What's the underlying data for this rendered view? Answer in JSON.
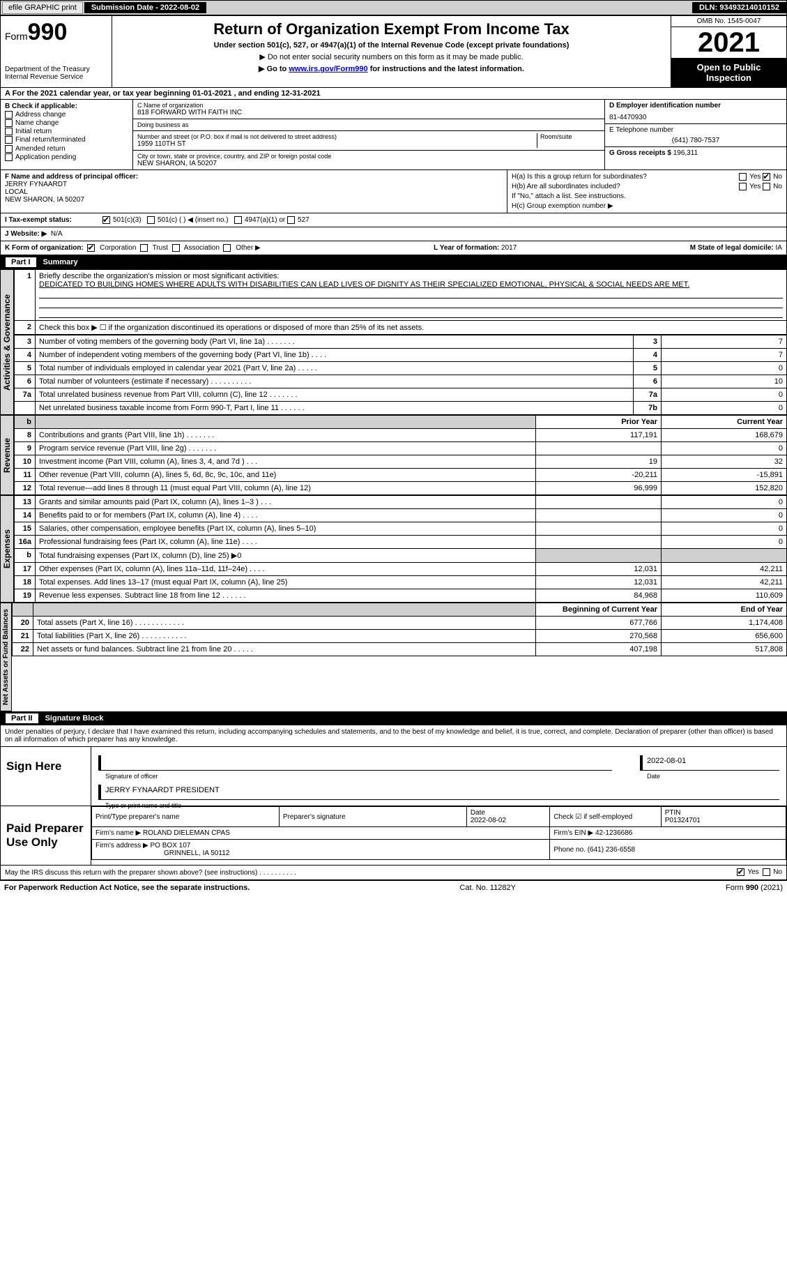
{
  "topbar": {
    "efile": "efile GRAPHIC print",
    "subdate_label": "Submission Date - ",
    "subdate": "2022-08-02",
    "dln_label": "DLN: ",
    "dln": "93493214010152"
  },
  "header": {
    "form_label": "Form",
    "form_num": "990",
    "dept": "Department of the Treasury",
    "irs": "Internal Revenue Service",
    "title": "Return of Organization Exempt From Income Tax",
    "sub1": "Under section 501(c), 527, or 4947(a)(1) of the Internal Revenue Code (except private foundations)",
    "sub2": "▶ Do not enter social security numbers on this form as it may be made public.",
    "sub3_a": "▶ Go to ",
    "sub3_link": "www.irs.gov/Form990",
    "sub3_b": " for instructions and the latest information.",
    "omb": "OMB No. 1545-0047",
    "year": "2021",
    "openpub": "Open to Public Inspection"
  },
  "rowA": "A  For the 2021 calendar year, or tax year beginning 01-01-2021    , and ending 12-31-2021",
  "colB": {
    "label": "B Check if applicable:",
    "opts": [
      "Address change",
      "Name change",
      "Initial return",
      "Final return/terminated",
      "Amended return",
      "Application pending"
    ]
  },
  "colC": {
    "name_lbl": "C Name of organization",
    "name": "818 FORWARD WITH FAITH INC",
    "dba_lbl": "Doing business as",
    "dba": "",
    "street_lbl": "Number and street (or P.O. box if mail is not delivered to street address)",
    "room_lbl": "Room/suite",
    "street": "1959 110TH ST",
    "city_lbl": "City or town, state or province, country, and ZIP or foreign postal code",
    "city": "NEW SHARON, IA  50207"
  },
  "colD": {
    "ein_lbl": "D Employer identification number",
    "ein": "81-4470930",
    "tel_lbl": "E Telephone number",
    "tel": "(641) 780-7537",
    "gross_lbl": "G Gross receipts $ ",
    "gross": "196,311"
  },
  "rowF": {
    "lbl": "F Name and address of principal officer:",
    "name": "JERRY FYNAARDT",
    "addr1": "LOCAL",
    "addr2": "NEW SHARON, IA  50207"
  },
  "rowH": {
    "ha": "H(a)  Is this a group return for subordinates?",
    "hb": "H(b)  Are all subordinates included?",
    "hb2": "If \"No,\" attach a list. See instructions.",
    "hc": "H(c)  Group exemption number ▶",
    "yes": "Yes",
    "no": "No"
  },
  "rowI": {
    "lbl": "I   Tax-exempt status:",
    "o1": "501(c)(3)",
    "o2": "501(c) (  ) ◀ (insert no.)",
    "o3": "4947(a)(1) or",
    "o4": "527"
  },
  "rowJ": {
    "lbl": "J   Website: ▶",
    "val": "N/A"
  },
  "rowK": {
    "lbl": "K Form of organization:",
    "o1": "Corporation",
    "o2": "Trust",
    "o3": "Association",
    "o4": "Other ▶"
  },
  "rowL": {
    "lbl": "L Year of formation: ",
    "val": "2017"
  },
  "rowM": {
    "lbl": "M State of legal domicile: ",
    "val": "IA"
  },
  "part1": {
    "num": "Part I",
    "title": "Summary"
  },
  "summary": {
    "line1a": "Briefly describe the organization's mission or most significant activities:",
    "mission": "DEDICATED TO BUILDING HOMES WHERE ADULTS WITH DISABILITIES CAN LEAD LIVES OF DIGNITY AS THEIR SPECIALIZED EMOTIONAL, PHYSICAL & SOCIAL NEEDS ARE MET.",
    "line2": "Check this box ▶ ☐ if the organization discontinued its operations or disposed of more than 25% of its net assets.",
    "rows": [
      {
        "n": "3",
        "d": "Number of voting members of the governing body (Part VI, line 1a)   .    .    .    .    .    .    .",
        "box": "3",
        "v": "7"
      },
      {
        "n": "4",
        "d": "Number of independent voting members of the governing body (Part VI, line 1b)   .    .    .    .",
        "box": "4",
        "v": "7"
      },
      {
        "n": "5",
        "d": "Total number of individuals employed in calendar year 2021 (Part V, line 2a)   .    .    .    .    .",
        "box": "5",
        "v": "0"
      },
      {
        "n": "6",
        "d": "Total number of volunteers (estimate if necessary)    .    .    .    .    .    .    .    .    .    .",
        "box": "6",
        "v": "10"
      },
      {
        "n": "7a",
        "d": "Total unrelated business revenue from Part VIII, column (C), line 12   .    .    .    .    .    .    .",
        "box": "7a",
        "v": "0"
      },
      {
        "n": "",
        "d": "Net unrelated business taxable income from Form 990-T, Part I, line 11   .    .    .    .    .    .",
        "box": "7b",
        "v": "0"
      }
    ]
  },
  "fin": {
    "hdr_prior": "Prior Year",
    "hdr_curr": "Current Year",
    "hdr_boy": "Beginning of Current Year",
    "hdr_eoy": "End of Year",
    "revenue": [
      {
        "n": "8",
        "d": "Contributions and grants (Part VIII, line 1h)   .    .    .    .    .    .    .",
        "p": "117,191",
        "c": "168,679"
      },
      {
        "n": "9",
        "d": "Program service revenue (Part VIII, line 2g)   .    .    .    .    .    .    .",
        "p": "",
        "c": "0"
      },
      {
        "n": "10",
        "d": "Investment income (Part VIII, column (A), lines 3, 4, and 7d )   .    .    .",
        "p": "19",
        "c": "32"
      },
      {
        "n": "11",
        "d": "Other revenue (Part VIII, column (A), lines 5, 6d, 8c, 9c, 10c, and 11e)",
        "p": "-20,211",
        "c": "-15,891"
      },
      {
        "n": "12",
        "d": "Total revenue—add lines 8 through 11 (must equal Part VIII, column (A), line 12)",
        "p": "96,999",
        "c": "152,820"
      }
    ],
    "expenses": [
      {
        "n": "13",
        "d": "Grants and similar amounts paid (Part IX, column (A), lines 1–3 )   .    .    .",
        "p": "",
        "c": "0"
      },
      {
        "n": "14",
        "d": "Benefits paid to or for members (Part IX, column (A), line 4)   .    .    .    .",
        "p": "",
        "c": "0"
      },
      {
        "n": "15",
        "d": "Salaries, other compensation, employee benefits (Part IX, column (A), lines 5–10)",
        "p": "",
        "c": "0"
      },
      {
        "n": "16a",
        "d": "Professional fundraising fees (Part IX, column (A), line 11e)   .    .    .    .",
        "p": "",
        "c": "0"
      },
      {
        "n": "b",
        "d": "Total fundraising expenses (Part IX, column (D), line 25) ▶0",
        "p": "gray",
        "c": "gray"
      },
      {
        "n": "17",
        "d": "Other expenses (Part IX, column (A), lines 11a–11d, 11f–24e)   .    .    .    .",
        "p": "12,031",
        "c": "42,211"
      },
      {
        "n": "18",
        "d": "Total expenses. Add lines 13–17 (must equal Part IX, column (A), line 25)",
        "p": "12,031",
        "c": "42,211"
      },
      {
        "n": "19",
        "d": "Revenue less expenses. Subtract line 18 from line 12   .    .    .    .    .    .",
        "p": "84,968",
        "c": "110,609"
      }
    ],
    "netassets": [
      {
        "n": "20",
        "d": "Total assets (Part X, line 16)   .    .    .    .    .    .    .    .    .    .    .    .",
        "p": "677,766",
        "c": "1,174,408"
      },
      {
        "n": "21",
        "d": "Total liabilities (Part X, line 26)   .    .    .    .    .    .    .    .    .    .    .",
        "p": "270,568",
        "c": "656,600"
      },
      {
        "n": "22",
        "d": "Net assets or fund balances. Subtract line 21 from line 20   .    .    .    .    .",
        "p": "407,198",
        "c": "517,808"
      }
    ]
  },
  "sidelabels": {
    "act": "Activities & Governance",
    "rev": "Revenue",
    "exp": "Expenses",
    "net": "Net Assets or Fund Balances"
  },
  "part2": {
    "num": "Part II",
    "title": "Signature Block"
  },
  "sig": {
    "decl": "Under penalties of perjury, I declare that I have examined this return, including accompanying schedules and statements, and to the best of my knowledge and belief, it is true, correct, and complete. Declaration of preparer (other than officer) is based on all information of which preparer has any knowledge.",
    "sign_here": "Sign Here",
    "sig_officer": "Signature of officer",
    "sig_date": "2022-08-01",
    "date_lbl": "Date",
    "officer_name": "JERRY FYNAARDT  PRESIDENT",
    "type_name_lbl": "Type or print name and title",
    "paid_prep": "Paid Preparer Use Only",
    "prep_name_lbl": "Print/Type preparer's name",
    "prep_name": "",
    "prep_sig_lbl": "Preparer's signature",
    "prep_date_lbl": "Date",
    "prep_date": "2022-08-02",
    "self_emp_lbl": "Check ☑ if self-employed",
    "ptin_lbl": "PTIN",
    "ptin": "P01324701",
    "firm_name_lbl": "Firm's name     ▶ ",
    "firm_name": "ROLAND DIELEMAN CPAS",
    "firm_ein_lbl": "Firm's EIN ▶ ",
    "firm_ein": "42-1236686",
    "firm_addr_lbl": "Firm's address ▶ ",
    "firm_addr1": "PO BOX 107",
    "firm_addr2": "GRINNELL, IA  50112",
    "firm_phone_lbl": "Phone no. ",
    "firm_phone": "(641) 236-6558",
    "discuss": "May the IRS discuss this return with the preparer shown above? (see instructions)   .    .    .    .    .    .    .    .    .    ."
  },
  "footer": {
    "pra": "For Paperwork Reduction Act Notice, see the separate instructions.",
    "cat": "Cat. No. 11282Y",
    "form": "Form 990 (2021)"
  },
  "colors": {
    "black": "#000000",
    "gray_bg": "#d0d0d0",
    "link": "#0000cc"
  }
}
